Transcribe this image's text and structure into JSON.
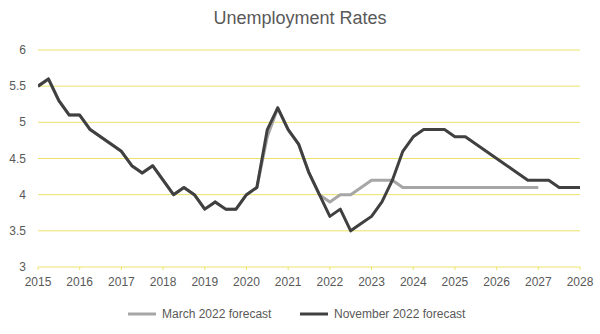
{
  "chart_data": {
    "type": "line",
    "title": "Unemployment Rates",
    "x": [
      2015,
      2015.25,
      2015.5,
      2015.75,
      2016,
      2016.25,
      2016.5,
      2016.75,
      2017,
      2017.25,
      2017.5,
      2017.75,
      2018,
      2018.25,
      2018.5,
      2018.75,
      2019,
      2019.25,
      2019.5,
      2019.75,
      2020,
      2020.25,
      2020.5,
      2020.75,
      2021,
      2021.25,
      2021.5,
      2021.75,
      2022,
      2022.25,
      2022.5,
      2022.75,
      2023,
      2023.25,
      2023.5,
      2023.75,
      2024,
      2024.25,
      2024.5,
      2024.75,
      2025,
      2025.25,
      2025.5,
      2025.75,
      2026,
      2026.25,
      2026.5,
      2026.75,
      2027,
      2027.25,
      2027.5,
      2027.75,
      2028
    ],
    "series": [
      {
        "name": "March 2022 forecast",
        "color": "#a6a6a6",
        "values": [
          5.5,
          5.6,
          5.3,
          5.1,
          5.1,
          4.9,
          4.8,
          4.7,
          4.6,
          4.4,
          4.3,
          4.4,
          4.2,
          4.0,
          4.1,
          4.0,
          3.8,
          3.9,
          3.8,
          3.8,
          4.0,
          4.1,
          4.8,
          5.2,
          4.9,
          4.7,
          4.3,
          4.0,
          3.9,
          4.0,
          4.0,
          4.1,
          4.2,
          4.2,
          4.2,
          4.1,
          4.1,
          4.1,
          4.1,
          4.1,
          4.1,
          4.1,
          4.1,
          4.1,
          4.1,
          4.1,
          4.1,
          4.1,
          4.1,
          null,
          null,
          null,
          null
        ]
      },
      {
        "name": "November 2022 forecast",
        "color": "#404040",
        "values": [
          5.5,
          5.6,
          5.3,
          5.1,
          5.1,
          4.9,
          4.8,
          4.7,
          4.6,
          4.4,
          4.3,
          4.4,
          4.2,
          4.0,
          4.1,
          4.0,
          3.8,
          3.9,
          3.8,
          3.8,
          4.0,
          4.1,
          4.9,
          5.2,
          4.9,
          4.7,
          4.3,
          4.0,
          3.7,
          3.8,
          3.5,
          3.6,
          3.7,
          3.9,
          4.2,
          4.6,
          4.8,
          4.9,
          4.9,
          4.9,
          4.8,
          4.8,
          4.7,
          4.6,
          4.5,
          4.4,
          4.3,
          4.2,
          4.2,
          4.2,
          4.1,
          4.1,
          4.1
        ]
      }
    ],
    "xlim": [
      2015,
      2028
    ],
    "xticks": [
      2015,
      2016,
      2017,
      2018,
      2019,
      2020,
      2021,
      2022,
      2023,
      2024,
      2025,
      2026,
      2027,
      2028
    ],
    "ylim": [
      3,
      6
    ],
    "yticks": [
      3,
      3.5,
      4,
      4.5,
      5,
      5.5,
      6
    ],
    "grid": true,
    "legend": "bottom"
  }
}
